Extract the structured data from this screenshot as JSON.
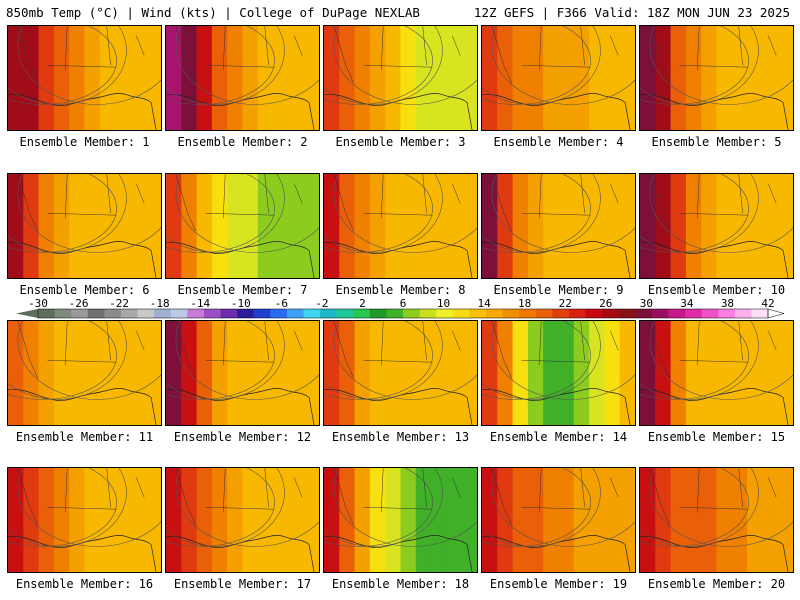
{
  "header": {
    "left": "850mb Temp (°C) | Wind (kts) | College of DuPage NEXLAB",
    "right": "12Z GEFS | F366 Valid: 18Z MON JUN 23 2025"
  },
  "colorbar": {
    "labels": [
      "-30",
      "-26",
      "-22",
      "-18",
      "-14",
      "-10",
      "-6",
      "-2",
      "2",
      "6",
      "10",
      "14",
      "18",
      "22",
      "26",
      "30",
      "34",
      "38",
      "42"
    ],
    "bin_colors": [
      "#5c6e5c",
      "#7d8a7d",
      "#9a9a9a",
      "#6f6f6f",
      "#8c8c8c",
      "#a8a8a8",
      "#c8c8c8",
      "#9fb0d4",
      "#bcc8e6",
      "#c77bd6",
      "#9a4fc4",
      "#6b2ea8",
      "#2a1f9a",
      "#1f3fd0",
      "#2a6cf0",
      "#3fa0f8",
      "#3fd4f0",
      "#1fb8c8",
      "#1fc896",
      "#28c850",
      "#1f9a28",
      "#3fb028",
      "#8ccc1f",
      "#c8e01f",
      "#f0f028",
      "#f8dc10",
      "#f8c008",
      "#f8a800",
      "#f09000",
      "#f07800",
      "#e86008",
      "#e04010",
      "#d82010",
      "#c80810",
      "#a80810",
      "#881018",
      "#78103a",
      "#9a1060",
      "#c41a8a",
      "#e02aa8",
      "#f050c8",
      "#f880e0",
      "#fcb0ec",
      "#fce0f8"
    ]
  },
  "members": [
    {
      "label": "Ensemble Member: 1",
      "profile": [
        30,
        30,
        27,
        25,
        22,
        20,
        19,
        18,
        18,
        18
      ]
    },
    {
      "label": "Ensemble Member: 2",
      "profile": [
        34,
        33,
        29,
        25,
        22,
        20,
        19,
        19,
        18,
        18
      ]
    },
    {
      "label": "Ensemble Member: 3",
      "profile": [
        27,
        25,
        22,
        20,
        18,
        17,
        15,
        14,
        14,
        15
      ]
    },
    {
      "label": "Ensemble Member: 4",
      "profile": [
        26,
        24,
        23,
        22,
        21,
        20,
        20,
        19,
        19,
        19
      ]
    },
    {
      "label": "Ensemble Member: 5",
      "profile": [
        32,
        30,
        25,
        22,
        20,
        19,
        18,
        18,
        18,
        18
      ]
    },
    {
      "label": "Ensemble Member: 6",
      "profile": [
        31,
        27,
        22,
        20,
        18,
        18,
        18,
        18,
        18,
        18
      ]
    },
    {
      "label": "Ensemble Member: 7",
      "profile": [
        26,
        22,
        19,
        17,
        15,
        14,
        13,
        13,
        12,
        12
      ]
    },
    {
      "label": "Ensemble Member: 8",
      "profile": [
        28,
        25,
        22,
        20,
        19,
        19,
        19,
        19,
        19,
        19
      ]
    },
    {
      "label": "Ensemble Member: 9",
      "profile": [
        32,
        27,
        22,
        20,
        19,
        19,
        19,
        19,
        19,
        19
      ]
    },
    {
      "label": "Ensemble Member: 10",
      "profile": [
        33,
        31,
        27,
        23,
        20,
        19,
        18,
        18,
        18,
        18
      ]
    },
    {
      "label": "Ensemble Member: 11",
      "profile": [
        24,
        22,
        20,
        19,
        18,
        18,
        18,
        18,
        18,
        18
      ]
    },
    {
      "label": "Ensemble Member: 12",
      "profile": [
        32,
        28,
        24,
        21,
        19,
        18,
        18,
        18,
        18,
        18
      ]
    },
    {
      "label": "Ensemble Member: 13",
      "profile": [
        27,
        24,
        21,
        19,
        18,
        18,
        18,
        18,
        18,
        18
      ]
    },
    {
      "label": "Ensemble Member: 14",
      "profile": [
        26,
        23,
        17,
        12,
        10,
        10,
        12,
        15,
        17,
        18
      ]
    },
    {
      "label": "Ensemble Member: 15",
      "profile": [
        32,
        28,
        22,
        19,
        18,
        18,
        18,
        18,
        18,
        18
      ]
    },
    {
      "label": "Ensemble Member: 16",
      "profile": [
        29,
        26,
        24,
        22,
        20,
        19,
        18,
        18,
        18,
        18
      ]
    },
    {
      "label": "Ensemble Member: 17",
      "profile": [
        29,
        27,
        25,
        23,
        21,
        19,
        18,
        18,
        18,
        18
      ]
    },
    {
      "label": "Ensemble Member: 18",
      "profile": [
        28,
        24,
        20,
        16,
        14,
        13,
        11,
        10,
        10,
        11
      ]
    },
    {
      "label": "Ensemble Member: 19",
      "profile": [
        29,
        27,
        25,
        24,
        23,
        22,
        21,
        21,
        21,
        21
      ]
    },
    {
      "label": "Ensemble Member: 20",
      "profile": [
        28,
        26,
        25,
        24,
        24,
        23,
        22,
        21,
        20,
        20
      ]
    }
  ]
}
